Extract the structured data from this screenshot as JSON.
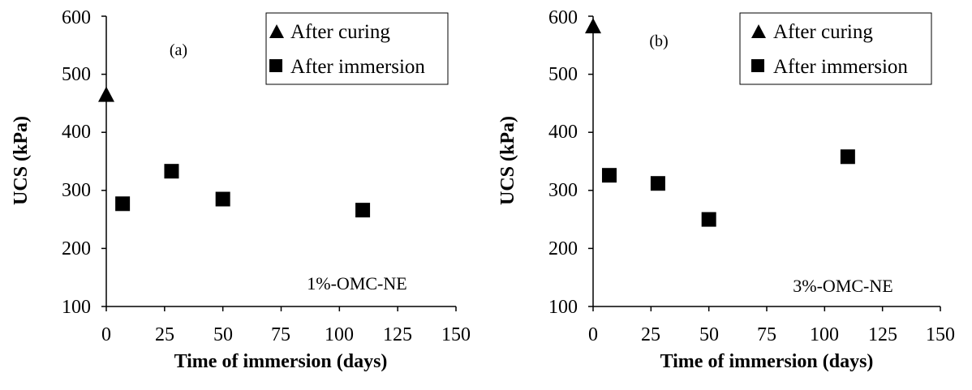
{
  "chart_data": [
    {
      "type": "scatter",
      "panel_label": "(a)",
      "annotation": "1%-OMC-NE",
      "xlabel": "Time of immersion (days)",
      "ylabel": "UCS (kPa)",
      "xlim": [
        0,
        150
      ],
      "ylim": [
        100,
        600
      ],
      "xticks": [
        "0",
        "25",
        "50",
        "75",
        "100",
        "125",
        "150"
      ],
      "yticks": [
        "100",
        "200",
        "300",
        "400",
        "500",
        "600"
      ],
      "grid": false,
      "legend_position": "top-right",
      "series": [
        {
          "name": "After curing",
          "marker": "triangle",
          "x": [
            0
          ],
          "y": [
            465
          ]
        },
        {
          "name": "After immersion",
          "marker": "square",
          "x": [
            7,
            28,
            50,
            110
          ],
          "y": [
            277,
            333,
            285,
            266
          ]
        }
      ]
    },
    {
      "type": "scatter",
      "panel_label": "(b)",
      "annotation": "3%-OMC-NE",
      "xlabel": "Time of immersion (days)",
      "ylabel": "UCS (kPa)",
      "xlim": [
        0,
        150
      ],
      "ylim": [
        100,
        600
      ],
      "xticks": [
        "0",
        "25",
        "50",
        "75",
        "100",
        "125",
        "150"
      ],
      "yticks": [
        "100",
        "200",
        "300",
        "400",
        "500",
        "600"
      ],
      "grid": false,
      "legend_position": "top-right",
      "series": [
        {
          "name": "After curing",
          "marker": "triangle",
          "x": [
            0
          ],
          "y": [
            583
          ]
        },
        {
          "name": "After immersion",
          "marker": "square",
          "x": [
            7,
            28,
            50,
            110
          ],
          "y": [
            326,
            312,
            250,
            358
          ]
        }
      ]
    }
  ],
  "colors": {
    "marker": "#000000",
    "axis": "#000000",
    "background": "#ffffff"
  }
}
